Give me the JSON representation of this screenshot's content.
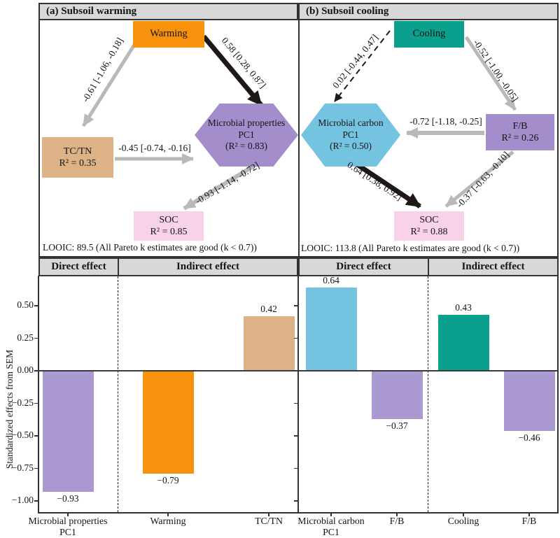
{
  "colors": {
    "orange": "#f8910b",
    "teal": "#0b9f8e",
    "tan": "#dcb286",
    "purple": "#a48dcb",
    "purple_bar": "#ab99d2",
    "pink": "#f8d2e8",
    "blue": "#74c4e1",
    "arrow_gray": "#b9b9b9",
    "arrow_black": "#201717",
    "header_bg": "#d8d8d8"
  },
  "panel_a": {
    "title": "(a) Subsoil warming",
    "nodes": {
      "warming": {
        "label": "Warming"
      },
      "tctn": {
        "line1": "TC/TN",
        "line2": "R² = 0.35"
      },
      "pc1": {
        "line1": "Microbial properties",
        "line2": "PC1",
        "line3": "(R² = 0.83)"
      },
      "soc": {
        "line1": "SOC",
        "line2": "R² = 0.85"
      }
    },
    "paths": {
      "warming_to_tctn": "-0.61 [-1.06, -0.18]",
      "warming_to_pc1": "0.58 [0.28, 0.87]",
      "tctn_to_pc1": "-0.45 [-0.74, -0.16]",
      "pc1_to_soc": "-0.93 [-1.14, -0.72]"
    },
    "looic": "LOOIC: 89.5 (All Pareto k estimates are good (k < 0.7))"
  },
  "panel_b": {
    "title": "(b) Subsoil cooling",
    "nodes": {
      "cooling": {
        "label": "Cooling"
      },
      "pc1": {
        "line1": "Microbial carbon",
        "line2": "PC1",
        "line3": "(R² = 0.50)"
      },
      "fb": {
        "line1": "F/B",
        "line2": "R² = 0.26"
      },
      "soc": {
        "line1": "SOC",
        "line2": "R² = 0.88"
      }
    },
    "paths": {
      "cooling_to_pc1": "0.02 [-0.44, 0.47]",
      "cooling_to_fb": "-0.52 [-1.00, -0.05]",
      "fb_to_pc1": "-0.72 [-1.18, -0.25]",
      "pc1_to_soc": "0.64 [0.38, 0.92]",
      "fb_to_soc": "-0.37 [-0.63, -0.10]"
    },
    "looic": "LOOIC: 113.8 (All Pareto k estimates are good (k < 0.7))"
  },
  "chart_data": {
    "type": "bar",
    "title": "",
    "xlabel": "",
    "ylabel": "Standardized effects from SEM",
    "ylim": [
      -1.1,
      0.72
    ],
    "grid": false,
    "legend_position": "none",
    "yticks": [
      0.5,
      0.25,
      0,
      -0.25,
      -0.5,
      -0.75,
      -1
    ],
    "ytick_labels": [
      "0.50",
      "0.25",
      "0.00",
      "−0.25",
      "−0.50",
      "−0.75",
      "−1.00"
    ],
    "section_headers": [
      "Direct effect",
      "Indirect effect",
      "Direct effect",
      "Indirect effect"
    ],
    "bars": [
      {
        "panel": "a",
        "section": "Direct effect",
        "label_lines": [
          "Microbial properties",
          "PC1"
        ],
        "value": -0.93,
        "value_label": "−0.93",
        "color_key": "purple_bar"
      },
      {
        "panel": "a",
        "section": "Indirect effect",
        "label_lines": [
          "Warming"
        ],
        "value": -0.79,
        "value_label": "−0.79",
        "color_key": "orange"
      },
      {
        "panel": "a",
        "section": "Indirect effect",
        "label_lines": [
          "TC/TN"
        ],
        "value": 0.42,
        "value_label": "0.42",
        "color_key": "tan"
      },
      {
        "panel": "b",
        "section": "Direct effect",
        "label_lines": [
          "Microbial carbon",
          "PC1"
        ],
        "value": 0.64,
        "value_label": "0.64",
        "color_key": "blue"
      },
      {
        "panel": "b",
        "section": "Direct effect",
        "label_lines": [
          "F/B"
        ],
        "value": -0.37,
        "value_label": "−0.37",
        "color_key": "purple_bar"
      },
      {
        "panel": "b",
        "section": "Indirect effect",
        "label_lines": [
          "Cooling"
        ],
        "value": 0.43,
        "value_label": "0.43",
        "color_key": "teal"
      },
      {
        "panel": "b",
        "section": "Indirect effect",
        "label_lines": [
          "F/B"
        ],
        "value": -0.46,
        "value_label": "−0.46",
        "color_key": "purple_bar"
      }
    ]
  }
}
